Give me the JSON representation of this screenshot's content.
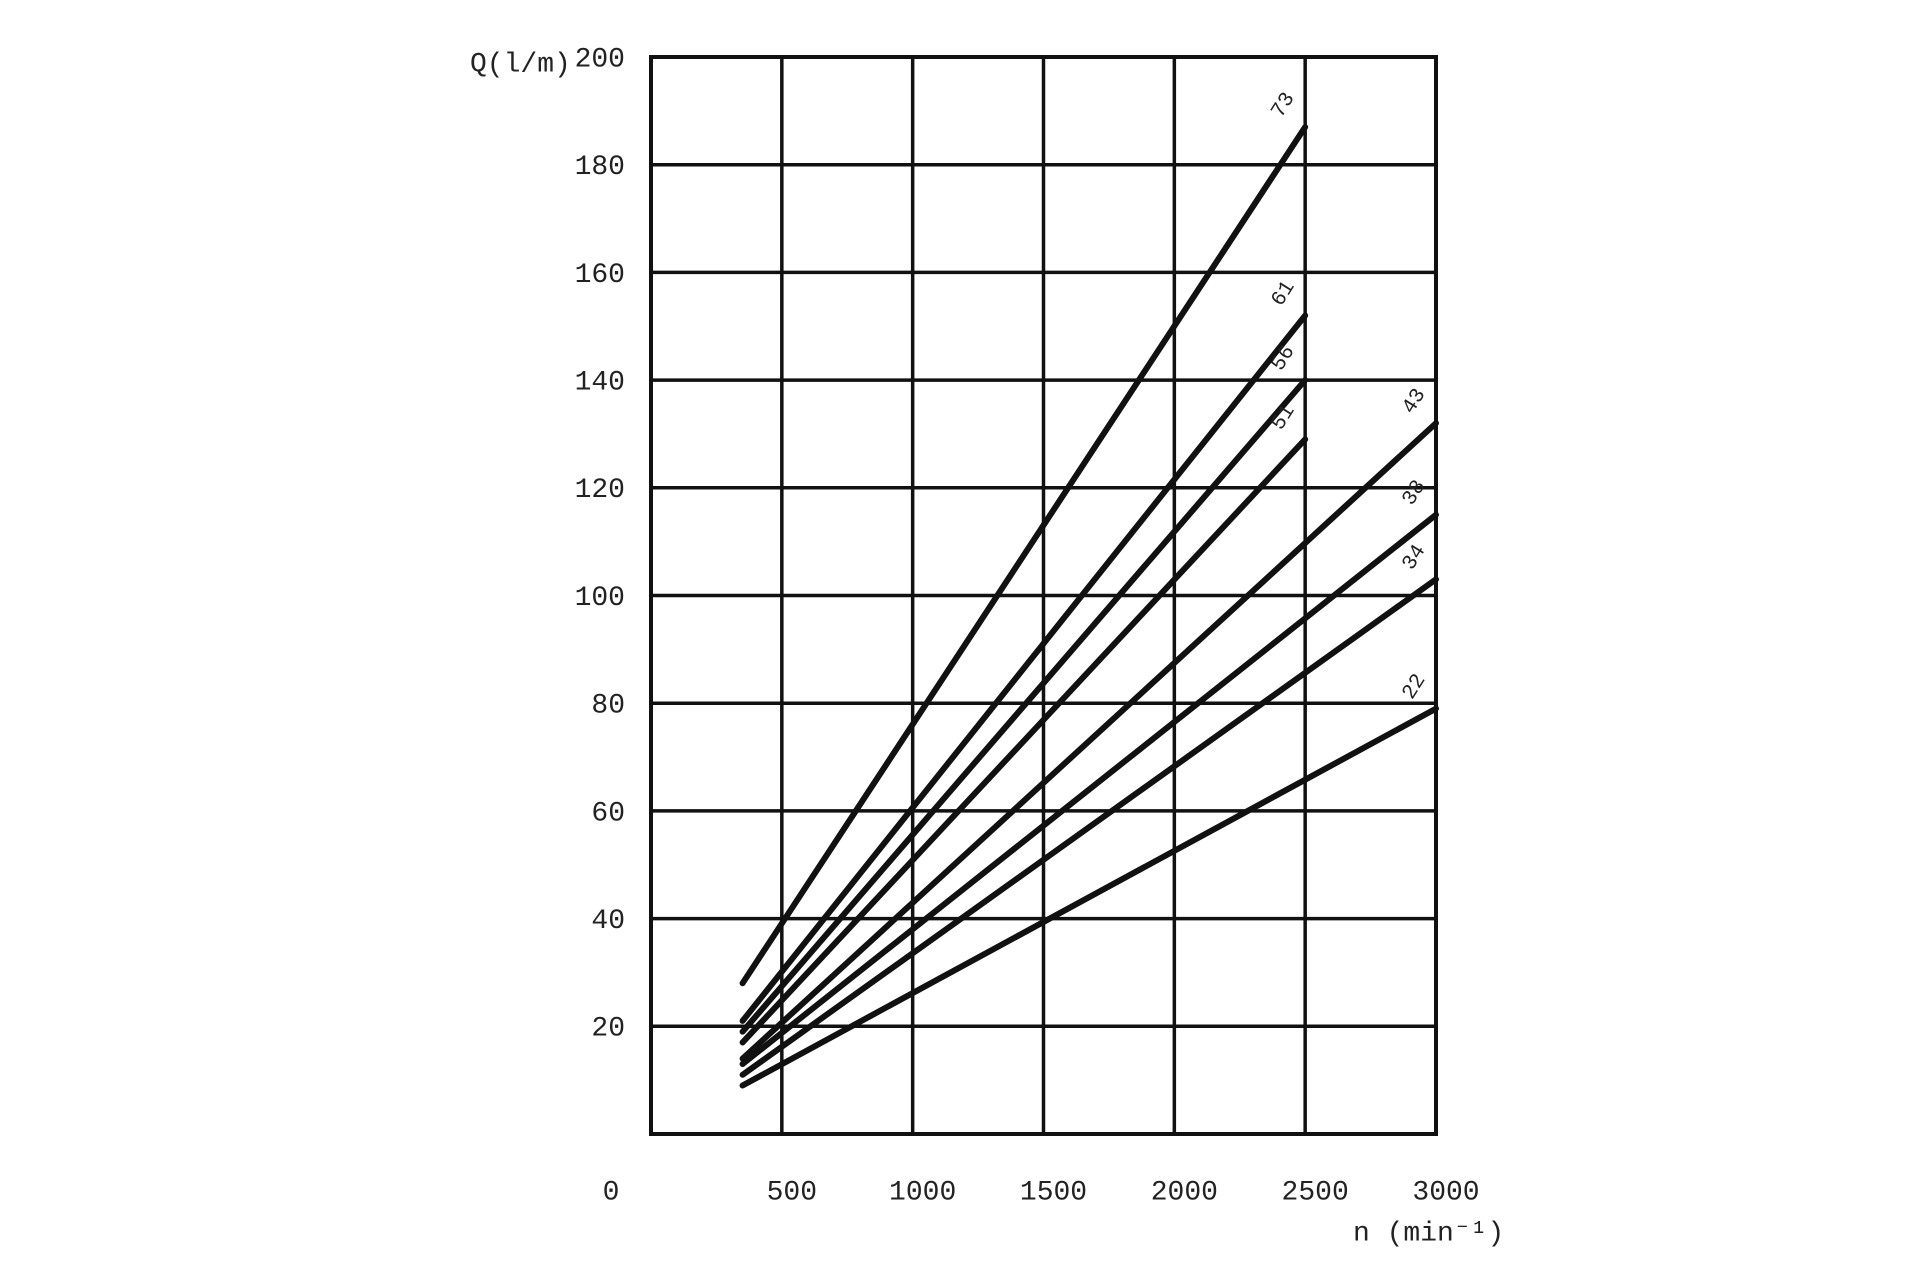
{
  "chart_data": {
    "type": "line",
    "xlabel": "n (min⁻¹)",
    "ylabel": "Q(l/m)",
    "xlim": [
      0,
      3000
    ],
    "ylim": [
      0,
      200
    ],
    "xticks": [
      0,
      500,
      1000,
      1500,
      2000,
      2500,
      3000
    ],
    "yticks": [
      20,
      40,
      60,
      80,
      100,
      120,
      140,
      160,
      180,
      200
    ],
    "grid": true,
    "series": [
      {
        "name": "73",
        "color": "#111111",
        "x": [
          350,
          2500
        ],
        "values": [
          28,
          187
        ]
      },
      {
        "name": "61",
        "color": "#111111",
        "x": [
          350,
          2500
        ],
        "values": [
          21,
          152
        ]
      },
      {
        "name": "56",
        "color": "#111111",
        "x": [
          350,
          2500
        ],
        "values": [
          19,
          140
        ]
      },
      {
        "name": "51",
        "color": "#111111",
        "x": [
          350,
          2500
        ],
        "values": [
          17,
          129
        ]
      },
      {
        "name": "43",
        "color": "#111111",
        "x": [
          350,
          3000
        ],
        "values": [
          14,
          132
        ]
      },
      {
        "name": "38",
        "color": "#111111",
        "x": [
          350,
          3000
        ],
        "values": [
          13,
          115
        ]
      },
      {
        "name": "34",
        "color": "#111111",
        "x": [
          350,
          3000
        ],
        "values": [
          11,
          103
        ]
      },
      {
        "name": "22",
        "color": "#111111",
        "x": [
          350,
          3000
        ],
        "values": [
          9,
          79
        ]
      }
    ]
  }
}
